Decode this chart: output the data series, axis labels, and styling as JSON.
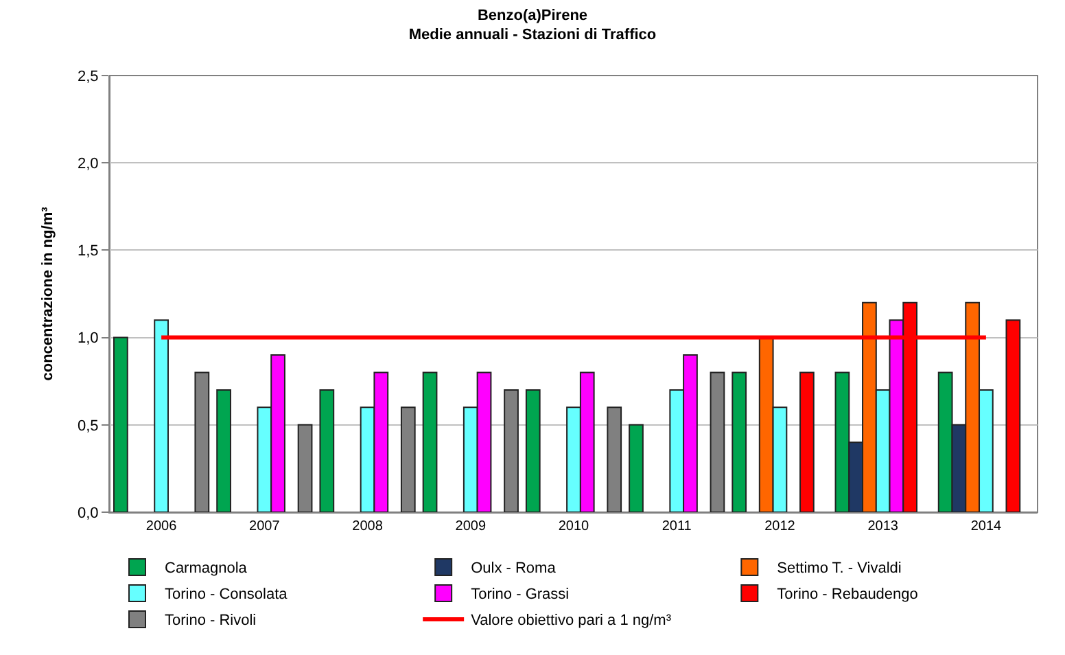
{
  "chart_data": {
    "type": "bar",
    "title": "Benzo(a)Pirene",
    "subtitle": "Medie annuali - Stazioni di Traffico",
    "ylabel": "concentrazione in ng/m³",
    "categories": [
      "2006",
      "2007",
      "2008",
      "2009",
      "2010",
      "2011",
      "2012",
      "2013",
      "2014"
    ],
    "ylim": [
      0,
      2.5
    ],
    "yticks": [
      {
        "value": 0,
        "label": "0,0"
      },
      {
        "value": 0.5,
        "label": "0,5"
      },
      {
        "value": 1,
        "label": "1,0"
      },
      {
        "value": 1.5,
        "label": "1,5"
      },
      {
        "value": 2,
        "label": "2,0"
      },
      {
        "value": 2.5,
        "label": "2,5"
      }
    ],
    "grid": "y",
    "legend": "bottom",
    "series": [
      {
        "name": "Carmagnola",
        "color": "#00a550",
        "values": [
          1.0,
          0.7,
          0.7,
          0.8,
          0.7,
          0.5,
          0.8,
          0.8,
          0.8
        ]
      },
      {
        "name": "Oulx - Roma",
        "color": "#1f3864",
        "values": [
          null,
          null,
          null,
          null,
          null,
          null,
          null,
          0.4,
          0.5
        ]
      },
      {
        "name": "Settimo T. - Vivaldi",
        "color": "#ff6600",
        "values": [
          null,
          null,
          null,
          null,
          null,
          null,
          1.0,
          1.2,
          1.2
        ]
      },
      {
        "name": "Torino - Consolata",
        "color": "#66ffff",
        "values": [
          1.1,
          0.6,
          0.6,
          0.6,
          0.6,
          0.7,
          0.6,
          0.7,
          0.7
        ]
      },
      {
        "name": "Torino - Grassi",
        "color": "#ff00ff",
        "values": [
          null,
          0.9,
          0.8,
          0.8,
          0.8,
          0.9,
          null,
          1.1,
          null
        ]
      },
      {
        "name": "Torino - Rebaudengo",
        "color": "#ff0000",
        "values": [
          null,
          null,
          null,
          null,
          null,
          null,
          0.8,
          1.2,
          1.1
        ]
      },
      {
        "name": "Torino - Rivoli",
        "color": "#808080",
        "values": [
          0.8,
          0.5,
          0.6,
          0.7,
          0.6,
          0.8,
          null,
          null,
          null
        ]
      },
      {
        "name": "Valore obiettivo pari a 1 ng/m³",
        "color": "#ff0000",
        "type": "line",
        "values": [
          1,
          1,
          1,
          1,
          1,
          1,
          1,
          1,
          1
        ]
      }
    ]
  }
}
